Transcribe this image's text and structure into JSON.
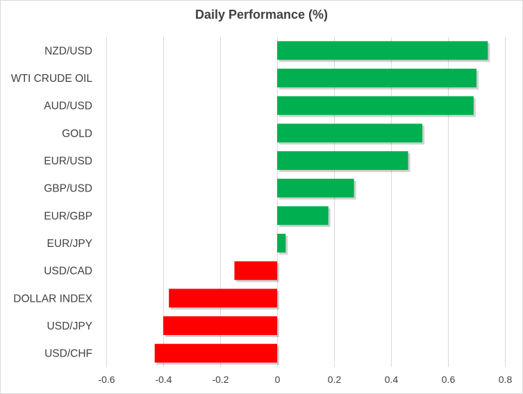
{
  "chart_data": {
    "type": "bar",
    "orientation": "horizontal",
    "title": "Daily Performance (%)",
    "xlabel": "",
    "ylabel": "",
    "xlim": [
      -0.6,
      0.8
    ],
    "xticks": [
      -0.6,
      -0.4,
      -0.2,
      0,
      0.2,
      0.4,
      0.6,
      0.8
    ],
    "xtick_labels": [
      "-0.6",
      "-0.4",
      "-0.2",
      "0",
      "0.2",
      "0.4",
      "0.6",
      "0.8"
    ],
    "grid": "vertical",
    "categories": [
      "NZD/USD",
      "WTI CRUDE OIL",
      "AUD/USD",
      "GOLD",
      "EUR/USD",
      "GBP/USD",
      "EUR/GBP",
      "EUR/JPY",
      "USD/CAD",
      "DOLLAR INDEX",
      "USD/JPY",
      "USD/CHF"
    ],
    "values": [
      0.74,
      0.7,
      0.69,
      0.51,
      0.46,
      0.27,
      0.18,
      0.03,
      -0.15,
      -0.38,
      -0.4,
      -0.43
    ],
    "colors": {
      "positive": "#00b050",
      "negative": "#ff0000",
      "grid": "#d9d9d9",
      "text": "#404040"
    }
  }
}
